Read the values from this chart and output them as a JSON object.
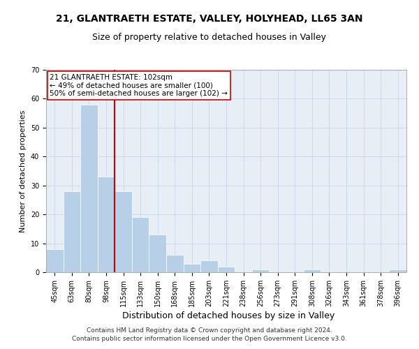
{
  "title": "21, GLANTRAETH ESTATE, VALLEY, HOLYHEAD, LL65 3AN",
  "subtitle": "Size of property relative to detached houses in Valley",
  "xlabel": "Distribution of detached houses by size in Valley",
  "ylabel": "Number of detached properties",
  "categories": [
    "45sqm",
    "63sqm",
    "80sqm",
    "98sqm",
    "115sqm",
    "133sqm",
    "150sqm",
    "168sqm",
    "185sqm",
    "203sqm",
    "221sqm",
    "238sqm",
    "256sqm",
    "273sqm",
    "291sqm",
    "308sqm",
    "326sqm",
    "343sqm",
    "361sqm",
    "378sqm",
    "396sqm"
  ],
  "values": [
    8,
    28,
    58,
    33,
    28,
    19,
    13,
    6,
    3,
    4,
    2,
    0,
    1,
    0,
    0,
    1,
    0,
    0,
    0,
    0,
    1
  ],
  "bar_color": "#b8cfe8",
  "vline_x": 3.5,
  "vline_color": "#cc0000",
  "annotation_text": "21 GLANTRAETH ESTATE: 102sqm\n← 49% of detached houses are smaller (100)\n50% of semi-detached houses are larger (102) →",
  "annotation_box_color": "#ffffff",
  "annotation_box_edge": "#cc0000",
  "ylim": [
    0,
    70
  ],
  "yticks": [
    0,
    10,
    20,
    30,
    40,
    50,
    60,
    70
  ],
  "grid_color": "#c8d4e8",
  "bg_color": "#e8eef6",
  "footer": "Contains HM Land Registry data © Crown copyright and database right 2024.\nContains public sector information licensed under the Open Government Licence v3.0.",
  "title_fontsize": 10,
  "subtitle_fontsize": 9,
  "xlabel_fontsize": 9,
  "ylabel_fontsize": 8,
  "tick_fontsize": 7,
  "annotation_fontsize": 7.5,
  "footer_fontsize": 6.5
}
